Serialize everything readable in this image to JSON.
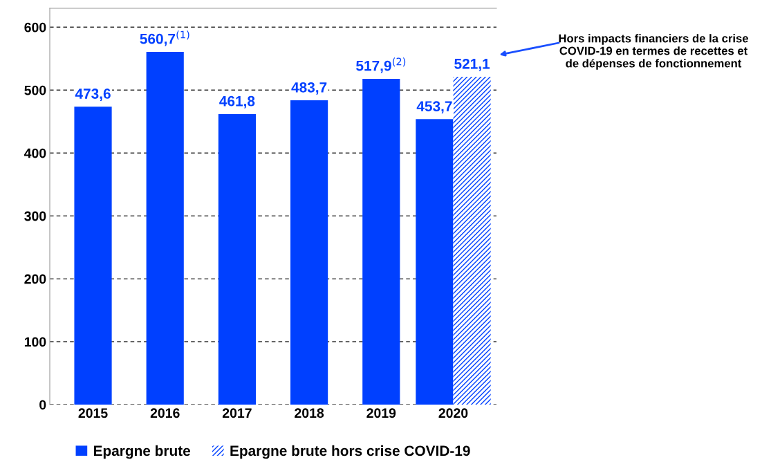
{
  "chart_data": {
    "type": "bar",
    "categories": [
      "2015",
      "2016",
      "2017",
      "2018",
      "2019",
      "2020"
    ],
    "series": [
      {
        "name": "Epargne brute",
        "color": "#0040ff",
        "values": [
          473.6,
          560.7,
          461.8,
          483.7,
          517.9,
          453.7
        ],
        "value_labels": [
          "473,6",
          "560,7$^{(1)}$",
          "461,8",
          "483,7",
          "517,9$^{(2)}$",
          "453,7"
        ]
      },
      {
        "name": "Epargne brute hors crise COVID-19",
        "color": "#0040ff",
        "values": [
          null,
          null,
          null,
          null,
          null,
          521.1
        ],
        "value_labels": [
          null,
          null,
          null,
          null,
          null,
          "521,1"
        ]
      }
    ],
    "ylim": [
      0,
      630
    ],
    "yticks": [
      0,
      100,
      200,
      300,
      400,
      500,
      600
    ],
    "grid": "y",
    "legend": "bottom",
    "annotations": [
      "Hors impacts financiers de la crise\nCOVID-19 en termes de recettes et\nde dépenses de fonctionnement"
    ]
  }
}
